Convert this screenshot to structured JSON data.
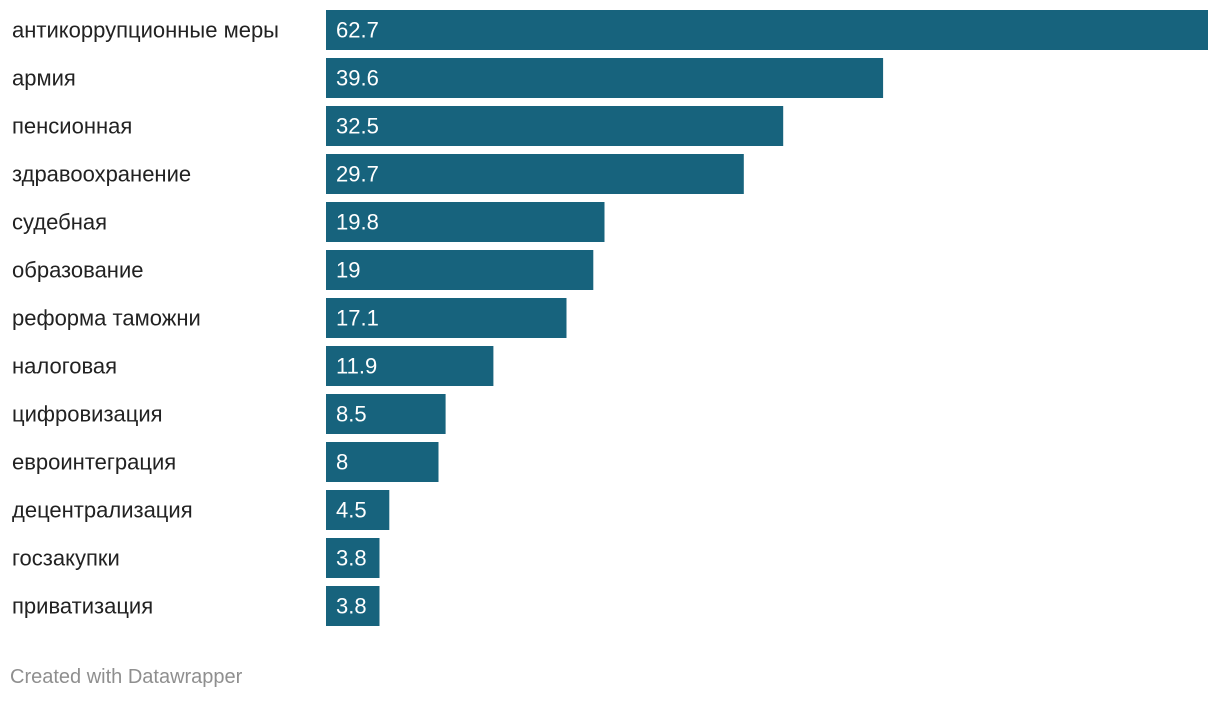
{
  "chart_data": {
    "type": "bar",
    "orientation": "horizontal",
    "categories": [
      "антикоррупционные меры",
      "армия",
      "пенсионная",
      "здравоохранение",
      "судебная",
      "образование",
      "реформа таможни",
      "налоговая",
      "цифровизация",
      "евроинтеграция",
      "децентрализация",
      "госзакупки",
      "приватизация"
    ],
    "values": [
      62.7,
      39.6,
      32.5,
      29.7,
      19.8,
      19,
      17.1,
      11.9,
      8.5,
      8,
      4.5,
      3.8,
      3.8
    ],
    "value_labels": [
      "62.7",
      "39.6",
      "32.5",
      "29.7",
      "19.8",
      "19",
      "17.1",
      "11.9",
      "8.5",
      "8",
      "4.5",
      "3.8",
      "3.8"
    ],
    "xlim": [
      0,
      62.7
    ],
    "grid": false,
    "bar_color": "#17637d"
  },
  "credit": "Created with Datawrapper",
  "colors": {
    "bar": "#17637d",
    "label_text": "#222222",
    "value_text": "#ffffff",
    "credit_text": "#8f8f8f"
  }
}
